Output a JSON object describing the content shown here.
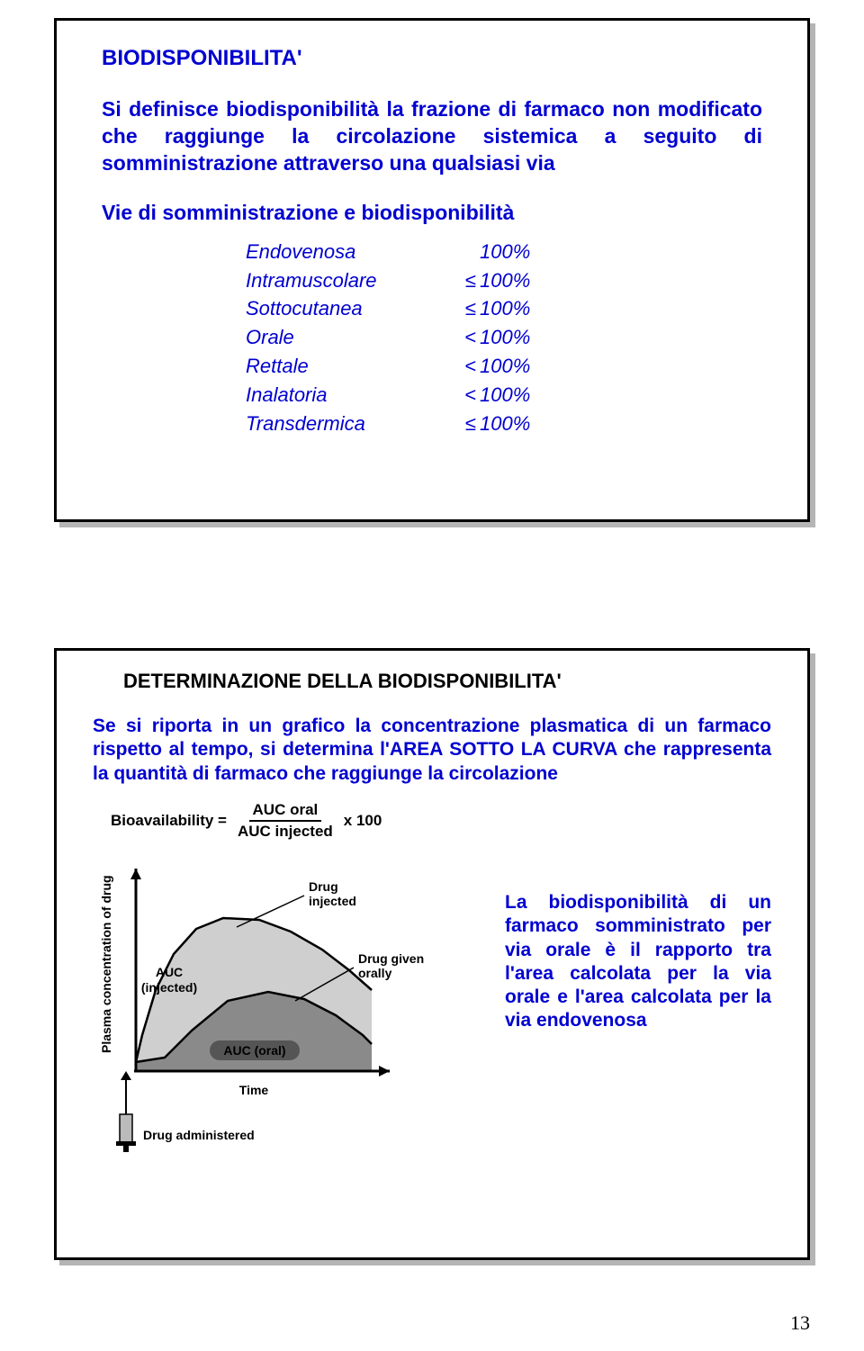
{
  "page_number": "13",
  "panel1": {
    "title": "BIODISPONIBILITA'",
    "intro": "Si definisce biodisponibilità la frazione di farmaco non modificato che raggiunge la circolazione sistemica a seguito di somministrazione attraverso una qualsiasi via",
    "subhead": "Vie di somministrazione e biodisponibilità",
    "routes": [
      {
        "name": "Endovenosa",
        "op": "",
        "val": "100%"
      },
      {
        "name": "Intramuscolare",
        "op": "≤",
        "val": "100%"
      },
      {
        "name": "Sottocutanea",
        "op": "≤",
        "val": "100%"
      },
      {
        "name": "Orale",
        "op": "<",
        "val": "100%"
      },
      {
        "name": "Rettale",
        "op": "<",
        "val": "100%"
      },
      {
        "name": "Inalatoria",
        "op": "<",
        "val": "100%"
      },
      {
        "name": "Transdermica",
        "op": "≤",
        "val": "100%"
      }
    ]
  },
  "panel2": {
    "title": "DETERMINAZIONE DELLA BIODISPONIBILITA'",
    "desc": "Se si riporta in un grafico la concentrazione plasmatica di un farmaco rispetto al tempo, si determina l'AREA SOTTO LA CURVA che rappresenta la quantità di farmaco che raggiunge la circolazione",
    "formula": {
      "lhs": "Bioavailability =",
      "num": "AUC oral",
      "den": "AUC injected",
      "tail": "x 100"
    },
    "chart": {
      "ylabel": "Plasma concentration of drug",
      "xlabel": "Time",
      "label_injected": "Drug injected",
      "label_oral": "Drug given orally",
      "auc_injected": "AUC (injected)",
      "auc_oral": "AUC (oral)",
      "syringe_label": "Drug administered",
      "colors": {
        "axes": "#000000",
        "fill_injected": "#cfcfcf",
        "fill_oral": "#8a8a8a",
        "curve": "#000000"
      },
      "injected_curve": [
        [
          48,
          10
        ],
        [
          55,
          40
        ],
        [
          70,
          90
        ],
        [
          90,
          130
        ],
        [
          115,
          158
        ],
        [
          145,
          170
        ],
        [
          185,
          168
        ],
        [
          220,
          155
        ],
        [
          255,
          135
        ],
        [
          285,
          112
        ],
        [
          310,
          90
        ]
      ],
      "oral_curve": [
        [
          48,
          10
        ],
        [
          80,
          15
        ],
        [
          110,
          45
        ],
        [
          150,
          78
        ],
        [
          195,
          88
        ],
        [
          235,
          80
        ],
        [
          270,
          62
        ],
        [
          300,
          40
        ],
        [
          310,
          30
        ]
      ]
    },
    "side_note": "La biodisponibilità di un farmaco somministrato per via orale è il rapporto tra l'area calcolata per la via orale e l'area calcolata per la via endovenosa"
  }
}
